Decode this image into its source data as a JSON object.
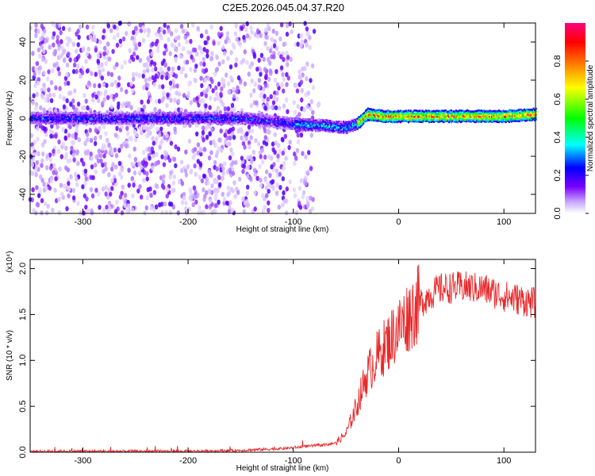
{
  "figure_title": "C2E5.2026.045.04.37.R20",
  "chart_data": [
    {
      "type": "heatmap",
      "xlabel": "Height of straight line (km)",
      "ylabel": "Frequency (Hz)",
      "xlim": [
        -350,
        130
      ],
      "ylim": [
        -50,
        50
      ],
      "x_ticks": [
        -300,
        -200,
        -100,
        0,
        100
      ],
      "y_ticks": [
        -40,
        -20,
        0,
        20,
        40
      ],
      "colorbar": {
        "label": "Normalized spectral amplitude",
        "range": [
          0,
          1
        ],
        "ticks": [
          "0.0",
          "0.2",
          "0.4",
          "0.6",
          "0.8"
        ],
        "colors": [
          "#ffffff",
          "#c8a8ff",
          "#7a00ff",
          "#0000ff",
          "#00ffff",
          "#00ff00",
          "#ffff00",
          "#ff8000",
          "#ff0000",
          "#ff0080"
        ]
      },
      "ridge_frequency_hz": [
        {
          "x": -350,
          "y": 0
        },
        {
          "x": -250,
          "y": 0
        },
        {
          "x": -150,
          "y": 0
        },
        {
          "x": -100,
          "y": -3
        },
        {
          "x": -70,
          "y": -4
        },
        {
          "x": -50,
          "y": -5
        },
        {
          "x": -40,
          "y": -3
        },
        {
          "x": -30,
          "y": 2
        },
        {
          "x": -15,
          "y": 1
        },
        {
          "x": 0,
          "y": 1
        },
        {
          "x": 50,
          "y": 1
        },
        {
          "x": 100,
          "y": 1
        },
        {
          "x": 130,
          "y": 2
        }
      ]
    },
    {
      "type": "line",
      "xlabel": "Height of straight line (km)",
      "ylabel": "SNR (10 * v/v)",
      "y_scale_label": "(x10⁴)",
      "xlim": [
        -350,
        130
      ],
      "ylim": [
        0,
        2.1
      ],
      "x_ticks": [
        -300,
        -200,
        -100,
        0,
        100
      ],
      "y_ticks": [
        "0.0",
        "0.5",
        "1.0",
        "1.5",
        "2.0"
      ],
      "color": "#e8282a",
      "x": [
        -350,
        -300,
        -250,
        -200,
        -150,
        -110,
        -100,
        -90,
        -80,
        -70,
        -60,
        -50,
        -40,
        -30,
        -20,
        -10,
        0,
        10,
        20,
        30,
        40,
        60,
        80,
        100,
        120,
        130
      ],
      "y": [
        0.01,
        0.01,
        0.01,
        0.01,
        0.02,
        0.04,
        0.05,
        0.06,
        0.07,
        0.08,
        0.1,
        0.2,
        0.5,
        0.85,
        1.05,
        1.2,
        1.35,
        1.5,
        1.62,
        1.72,
        1.78,
        1.8,
        1.78,
        1.7,
        1.65,
        1.62
      ]
    }
  ]
}
